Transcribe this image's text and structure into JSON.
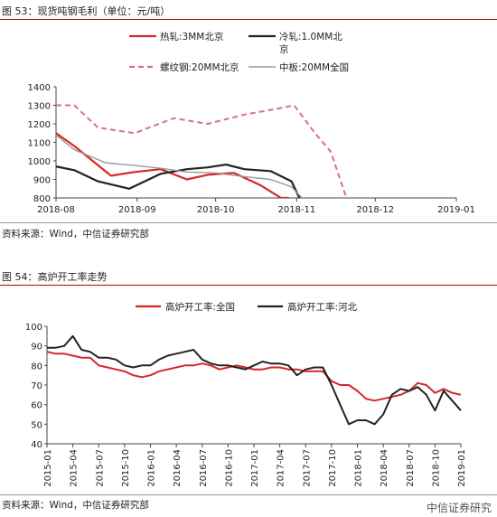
{
  "figure1": {
    "title": "图 53：现货吨钢毛利（单位：元/吨）",
    "source": "资料来源：Wind，中信证券研究部"
  },
  "figure2": {
    "title": "图 54：高炉开工率走势",
    "source": "资料来源：Wind，中信证券研究部"
  },
  "watermark": "中信证券研究",
  "chart_data": [
    {
      "type": "line",
      "title": "图 53：现货吨钢毛利（单位：元/吨）",
      "x_ticks": [
        "2018-08",
        "2018-09",
        "2018-10",
        "2018-11",
        "2018-12",
        "2019-01"
      ],
      "xlim": [
        "2018-08-01",
        "2019-01-01"
      ],
      "ylim": [
        800,
        1400
      ],
      "y_ticks": [
        800,
        900,
        1000,
        1100,
        1200,
        1300,
        1400
      ],
      "legend": "top",
      "series": [
        {
          "name": "热轧:3MM北京",
          "color": "#d62728",
          "style": "solid",
          "x": [
            "2018-08-01",
            "2018-08-08",
            "2018-08-15",
            "2018-08-22",
            "2018-08-31",
            "2018-09-10",
            "2018-09-20",
            "2018-09-28",
            "2018-10-08",
            "2018-10-18",
            "2018-10-26",
            "2018-10-29"
          ],
          "y": [
            1150,
            1080,
            1000,
            920,
            940,
            955,
            900,
            925,
            935,
            870,
            800,
            800
          ]
        },
        {
          "name": "冷轧:1.0MM北京",
          "color": "#222222",
          "style": "solid",
          "x": [
            "2018-08-01",
            "2018-08-08",
            "2018-08-17",
            "2018-08-29",
            "2018-09-10",
            "2018-09-20",
            "2018-09-28",
            "2018-10-05",
            "2018-10-12",
            "2018-10-22",
            "2018-10-30",
            "2018-11-02"
          ],
          "y": [
            970,
            950,
            890,
            850,
            930,
            955,
            965,
            980,
            955,
            945,
            890,
            800
          ]
        },
        {
          "name": "螺纹钢:20MM北京",
          "color": "#d9707d",
          "style": "dashed",
          "x": [
            "2018-08-01",
            "2018-08-08",
            "2018-08-17",
            "2018-08-31",
            "2018-09-15",
            "2018-09-28",
            "2018-10-12",
            "2018-10-24",
            "2018-10-31",
            "2018-11-08",
            "2018-11-14",
            "2018-11-20"
          ],
          "y": [
            1300,
            1300,
            1180,
            1150,
            1230,
            1200,
            1250,
            1280,
            1300,
            1150,
            1050,
            800
          ]
        },
        {
          "name": "中板:20MM全国",
          "color": "#999999",
          "style": "solid",
          "x": [
            "2018-08-01",
            "2018-08-08",
            "2018-08-20",
            "2018-08-31",
            "2018-09-10",
            "2018-09-20",
            "2018-10-01",
            "2018-10-12",
            "2018-10-22",
            "2018-10-30",
            "2018-11-03"
          ],
          "y": [
            1140,
            1060,
            990,
            975,
            960,
            940,
            935,
            915,
            900,
            860,
            800
          ]
        }
      ]
    },
    {
      "type": "line",
      "title": "图 54：高炉开工率走势",
      "x_ticks": [
        "2015-01",
        "2015-04",
        "2015-07",
        "2015-10",
        "2016-01",
        "2016-04",
        "2016-07",
        "2016-10",
        "2017-01",
        "2017-04",
        "2017-07",
        "2017-10",
        "2018-01",
        "2018-04",
        "2018-07",
        "2018-10",
        "2019-01"
      ],
      "ylim": [
        40,
        100
      ],
      "y_ticks": [
        40,
        50,
        60,
        70,
        80,
        90,
        100
      ],
      "legend": "top",
      "series": [
        {
          "name": "高炉开工率:全国",
          "color": "#d62728",
          "x": [
            0,
            1,
            2,
            3,
            4,
            5,
            6,
            7,
            8,
            9,
            10,
            11,
            12,
            13,
            14,
            15,
            16,
            17,
            18,
            19,
            20,
            21,
            22,
            23,
            24,
            25,
            26,
            27,
            28,
            29,
            30,
            31,
            32,
            33,
            34,
            35,
            36,
            37,
            38,
            39,
            40,
            41,
            42,
            43,
            44,
            45,
            46,
            47,
            48
          ],
          "y": [
            87,
            86,
            86,
            85,
            84,
            84,
            80,
            79,
            78,
            77,
            75,
            74,
            75,
            77,
            78,
            79,
            80,
            80,
            81,
            80,
            78,
            79,
            80,
            79,
            78,
            78,
            79,
            79,
            78,
            78,
            77,
            77,
            77,
            72,
            70,
            70,
            67,
            63,
            62,
            63,
            64,
            65,
            67,
            71,
            70,
            66,
            68,
            66,
            65
          ]
        },
        {
          "name": "高炉开工率:河北",
          "color": "#222222",
          "x": [
            0,
            1,
            2,
            3,
            4,
            5,
            6,
            7,
            8,
            9,
            10,
            11,
            12,
            13,
            14,
            15,
            16,
            17,
            18,
            19,
            20,
            21,
            22,
            23,
            24,
            25,
            26,
            27,
            28,
            29,
            30,
            31,
            32,
            33,
            34,
            35,
            36,
            37,
            38,
            39,
            40,
            41,
            42,
            43,
            44,
            45,
            46,
            47,
            48
          ],
          "y": [
            89,
            89,
            90,
            95,
            88,
            87,
            84,
            84,
            83,
            80,
            79,
            80,
            80,
            83,
            85,
            86,
            87,
            88,
            83,
            81,
            80,
            80,
            79,
            78,
            80,
            82,
            81,
            81,
            80,
            75,
            78,
            79,
            79,
            70,
            60,
            50,
            52,
            52,
            50,
            55,
            65,
            68,
            67,
            69,
            65,
            57,
            67,
            62,
            57
          ]
        }
      ]
    }
  ]
}
